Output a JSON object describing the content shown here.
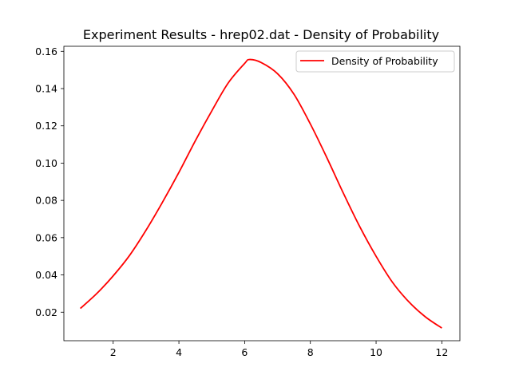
{
  "chart_data": {
    "type": "line",
    "title": "Experiment Results - hrep02.dat - Density of Probability",
    "xlabel": "",
    "ylabel": "",
    "xlim": [
      0.5,
      12.55
    ],
    "ylim": [
      0.0047,
      0.1627
    ],
    "xticks": [
      2,
      4,
      6,
      8,
      10,
      12
    ],
    "yticks": [
      0.02,
      0.04,
      0.06,
      0.08,
      0.1,
      0.12,
      0.14,
      0.16
    ],
    "xtick_labels": [
      "2",
      "4",
      "6",
      "8",
      "10",
      "12"
    ],
    "ytick_labels": [
      "0.02",
      "0.04",
      "0.06",
      "0.08",
      "0.10",
      "0.12",
      "0.14",
      "0.16"
    ],
    "grid": false,
    "legend_position": "top-right",
    "series": [
      {
        "name": "Density of Probability",
        "color": "#ff0000",
        "x": [
          1.0,
          1.5,
          2.0,
          2.5,
          3.0,
          3.5,
          4.0,
          4.5,
          5.0,
          5.5,
          6.0,
          6.15,
          6.5,
          7.0,
          7.5,
          8.0,
          8.5,
          9.0,
          9.5,
          10.0,
          10.5,
          11.0,
          11.5,
          12.0
        ],
        "y": [
          0.022,
          0.03,
          0.0395,
          0.0505,
          0.064,
          0.079,
          0.095,
          0.112,
          0.128,
          0.143,
          0.1535,
          0.1556,
          0.154,
          0.148,
          0.137,
          0.121,
          0.103,
          0.084,
          0.066,
          0.05,
          0.036,
          0.0255,
          0.0175,
          0.0115
        ]
      }
    ]
  }
}
